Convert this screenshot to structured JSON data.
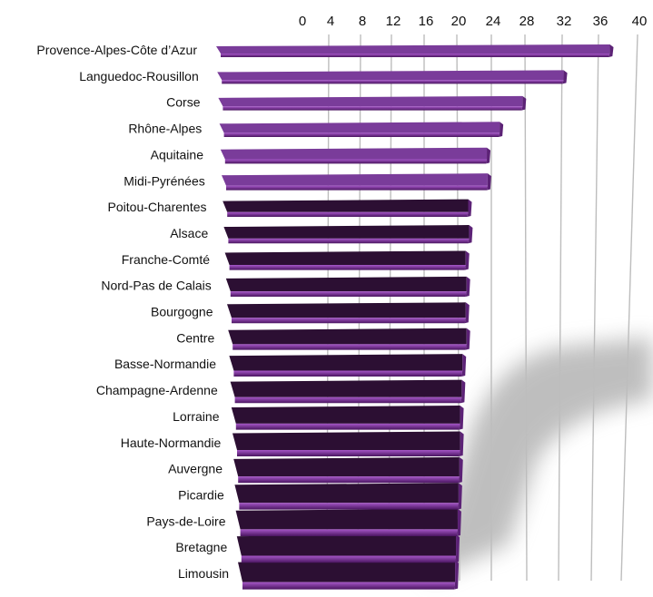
{
  "chart_data": {
    "type": "bar",
    "orientation": "horizontal",
    "style": "3d-perspective",
    "xlim": [
      0,
      40
    ],
    "xticks": [
      0,
      4,
      8,
      12,
      16,
      20,
      24,
      28,
      32,
      36,
      40
    ],
    "grid": true,
    "legend": "none",
    "categories": [
      "Provence-Alpes-Côte d’Azur",
      "Languedoc-Rousillon",
      "Corse",
      "Rhône-Alpes",
      "Aquitaine",
      "Midi-Pyrénées",
      "Poitou-Charentes",
      "Alsace",
      "Franche-Comté",
      "Nord-Pas de Calais",
      "Bourgogne",
      "Centre",
      "Basse-Normandie",
      "Champagne-Ardenne",
      "Lorraine",
      "Haute-Normandie",
      "Auvergne",
      "Picardie",
      "Pays-de-Loire",
      "Bretagne",
      "Limousin"
    ],
    "values": [
      37,
      32,
      27.5,
      24.8,
      23.3,
      23.4,
      21.1,
      21.2,
      20.8,
      20.9,
      20.8,
      20.9,
      20.4,
      20.3,
      20.1,
      20.1,
      20.0,
      19.9,
      19.8,
      19.6,
      19.5
    ],
    "colors": {
      "bar_top": "#7a3c9a",
      "bar_top_dark": "#2c0f33",
      "bar_face": "#5c2276",
      "bar_face_light": "#a657c8",
      "grid": "#bdbdbd",
      "shadow": "#8a8a8a"
    }
  }
}
